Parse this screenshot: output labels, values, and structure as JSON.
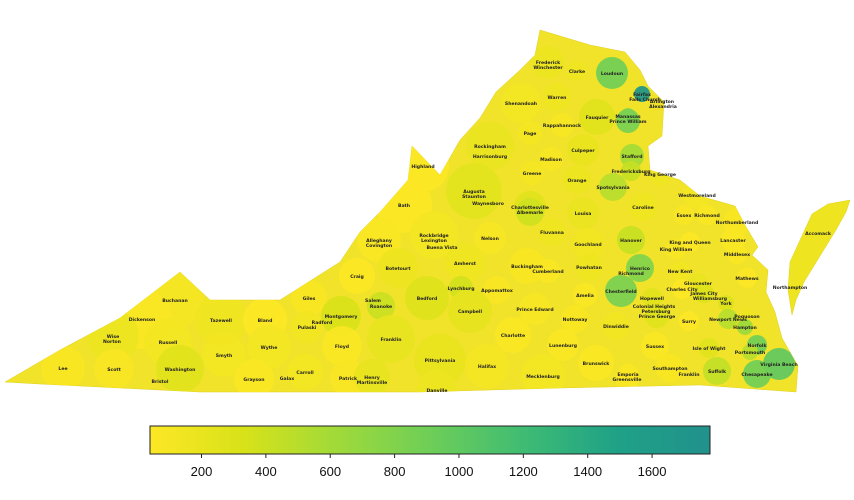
{
  "colormap": {
    "stops": [
      "#fde725",
      "#d8e219",
      "#a0da39",
      "#6ece58",
      "#3fbc73",
      "#1fa187",
      "#21918c"
    ],
    "min": 40,
    "max": 1780,
    "ticks": [
      "200",
      "400",
      "600",
      "800",
      "1000",
      "1200",
      "1400",
      "1600"
    ],
    "tick_values": [
      200,
      400,
      600,
      800,
      1000,
      1200,
      1400,
      1600
    ]
  },
  "state_fill": "#f0e32a",
  "counties": [
    {
      "label": "Frederick",
      "value": 180
    },
    {
      "label": "Winchester",
      "value": 170
    },
    {
      "label": "Clarke",
      "value": 150
    },
    {
      "label": "Loudoun",
      "value": 900
    },
    {
      "label": "Fairfax",
      "value": 1700
    },
    {
      "label": "Falls Church",
      "value": 1600
    },
    {
      "label": "Arlington",
      "value": 1750
    },
    {
      "label": "Alexandria",
      "value": 1650
    },
    {
      "label": "Manassas",
      "value": 700
    },
    {
      "label": "Prince William",
      "value": 850
    },
    {
      "label": "Warren",
      "value": 150
    },
    {
      "label": "Shenandoah",
      "value": 120
    },
    {
      "label": "Fauquier",
      "value": 260
    },
    {
      "label": "Rappahannock",
      "value": 90
    },
    {
      "label": "Page",
      "value": 110
    },
    {
      "label": "Rockingham",
      "value": 190
    },
    {
      "label": "Harrisonburg",
      "value": 180
    },
    {
      "label": "Culpeper",
      "value": 200
    },
    {
      "label": "Stafford",
      "value": 600
    },
    {
      "label": "Madison",
      "value": 90
    },
    {
      "label": "Highland",
      "value": 40
    },
    {
      "label": "Greene",
      "value": 110
    },
    {
      "label": "Fredericksburg",
      "value": 420
    },
    {
      "label": "King George",
      "value": 150
    },
    {
      "label": "Orange",
      "value": 170
    },
    {
      "label": "Spotsylvania",
      "value": 500
    },
    {
      "label": "Augusta",
      "value": 240
    },
    {
      "label": "Staunton",
      "value": 160
    },
    {
      "label": "Westmoreland",
      "value": 100
    },
    {
      "label": "Waynesboro",
      "value": 140
    },
    {
      "label": "Bath",
      "value": 40
    },
    {
      "label": "Charlottesville",
      "value": 260
    },
    {
      "label": "Albemarle",
      "value": 380
    },
    {
      "label": "Caroline",
      "value": 150
    },
    {
      "label": "Richmond",
      "value": 60
    },
    {
      "label": "Essex",
      "value": 70
    },
    {
      "label": "Northumberland",
      "value": 80
    },
    {
      "label": "Louisa",
      "value": 190
    },
    {
      "label": "Fluvanna",
      "value": 150
    },
    {
      "label": "Rockbridge",
      "value": 120
    },
    {
      "label": "Lexington",
      "value": 110
    },
    {
      "label": "Hanover",
      "value": 420
    },
    {
      "label": "Goochland",
      "value": 130
    },
    {
      "label": "King and Queen",
      "value": 40
    },
    {
      "label": "Lancaster",
      "value": 60
    },
    {
      "label": "Nelson",
      "value": 90
    },
    {
      "label": "Buena Vista",
      "value": 80
    },
    {
      "label": "King William",
      "value": 90
    },
    {
      "label": "Alleghany",
      "value": 60
    },
    {
      "label": "Covington",
      "value": 60
    },
    {
      "label": "Middlesex",
      "value": 60
    },
    {
      "label": "Accomack",
      "value": 160
    },
    {
      "label": "Henrico",
      "value": 800
    },
    {
      "label": "Richmond",
      "value": 750
    },
    {
      "label": "New Kent",
      "value": 130
    },
    {
      "label": "Mathews",
      "value": 50
    },
    {
      "label": "Amherst",
      "value": 150
    },
    {
      "label": "Buckingham",
      "value": 80
    },
    {
      "label": "Powhatan",
      "value": 150
    },
    {
      "label": "Gloucester",
      "value": 190
    },
    {
      "label": "Cumberland",
      "value": 60
    },
    {
      "label": "Botetourt",
      "value": 160
    },
    {
      "label": "Craig",
      "value": 40
    },
    {
      "label": "Northampton",
      "value": 60
    },
    {
      "label": "James City",
      "value": 300
    },
    {
      "label": "Charles City",
      "value": 40
    },
    {
      "label": "Williamsburg",
      "value": 180
    },
    {
      "label": "Lynchburg",
      "value": 360
    },
    {
      "label": "Buchanan",
      "value": 100
    },
    {
      "label": "Chesterfield",
      "value": 850
    },
    {
      "label": "Hopewell",
      "value": 250
    },
    {
      "label": "Amelia",
      "value": 60
    },
    {
      "label": "York",
      "value": 300
    },
    {
      "label": "Appomattox",
      "value": 70
    },
    {
      "label": "Bedford",
      "value": 280
    },
    {
      "label": "Poquoson",
      "value": 150
    },
    {
      "label": "Giles",
      "value": 80
    },
    {
      "label": "Salem",
      "value": 200
    },
    {
      "label": "Roanoke",
      "value": 400
    },
    {
      "label": "Colonial Heights",
      "value": 200
    },
    {
      "label": "Newport News",
      "value": 500
    },
    {
      "label": "Dickenson",
      "value": 60
    },
    {
      "label": "Tazewell",
      "value": 150
    },
    {
      "label": "Bland",
      "value": 40
    },
    {
      "label": "Montgomery",
      "value": 320
    },
    {
      "label": "Petersburg",
      "value": 250
    },
    {
      "label": "Prince George",
      "value": 270
    },
    {
      "label": "Surry",
      "value": 50
    },
    {
      "label": "Hampton",
      "value": 650
    },
    {
      "label": "Pulaski",
      "value": 130
    },
    {
      "label": "Radford",
      "value": 120
    },
    {
      "label": "Campbell",
      "value": 220
    },
    {
      "label": "Prince Edward",
      "value": 90
    },
    {
      "label": "Nottoway",
      "value": 80
    },
    {
      "label": "Wise",
      "value": 170
    },
    {
      "label": "Norton",
      "value": 70
    },
    {
      "label": "Dinwiddie",
      "value": 130
    },
    {
      "label": "Russell",
      "value": 120
    },
    {
      "label": "Franklin",
      "value": 210
    },
    {
      "label": "Charlotte",
      "value": 60
    },
    {
      "label": "Norfolk",
      "value": 900
    },
    {
      "label": "Floyd",
      "value": 60
    },
    {
      "label": "Lunenburg",
      "value": 60
    },
    {
      "label": "Sussex",
      "value": 60
    },
    {
      "label": "Isle of Wight",
      "value": 250
    },
    {
      "label": "Wythe",
      "value": 120
    },
    {
      "label": "Smyth",
      "value": 120
    },
    {
      "label": "Portsmouth",
      "value": 500
    },
    {
      "label": "Pittsylvania",
      "value": 200
    },
    {
      "label": "Brunswick",
      "value": 60
    },
    {
      "label": "Halifax",
      "value": 100
    },
    {
      "label": "Washington",
      "value": 250
    },
    {
      "label": "Virginia Beach",
      "value": 1000
    },
    {
      "label": "Lee",
      "value": 80
    },
    {
      "label": "Scott",
      "value": 70
    },
    {
      "label": "Emporia",
      "value": 60
    },
    {
      "label": "Greensville",
      "value": 60
    },
    {
      "label": "Southampton",
      "value": 80
    },
    {
      "label": "Franklin",
      "value": 80
    },
    {
      "label": "Suffolk",
      "value": 450
    },
    {
      "label": "Chesapeake",
      "value": 900
    },
    {
      "label": "Carroll",
      "value": 120
    },
    {
      "label": "Mecklenburg",
      "value": 120
    },
    {
      "label": "Bristol",
      "value": 120
    },
    {
      "label": "Grayson",
      "value": 60
    },
    {
      "label": "Galax",
      "value": 60
    },
    {
      "label": "Patrick",
      "value": 70
    },
    {
      "label": "Henry",
      "value": 210
    },
    {
      "label": "Martinsville",
      "value": 120
    },
    {
      "label": "Danville",
      "value": 180
    }
  ]
}
